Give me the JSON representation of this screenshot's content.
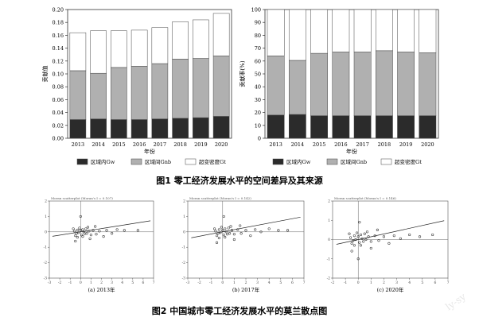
{
  "colors": {
    "within": "#2b2b2b",
    "between": "#b0b0b0",
    "transvariation": "#ffffff",
    "scatter_point": "#333333",
    "axis_line": "#444444",
    "watermark": "#c8c8c8"
  },
  "figure1": {
    "caption": "图1 零工经济发展水平的空间差异及其来源"
  },
  "figure2": {
    "caption": "图2 中国城市零工经济发展水平的莫兰散点图"
  },
  "watermark_text": "ly-sy",
  "chart_data": [
    {
      "type": "bar",
      "stacked": true,
      "categories": [
        "2013",
        "2014",
        "2015",
        "2016",
        "2017",
        "2018",
        "2019",
        "2020"
      ],
      "xlabel": "年份",
      "ylabel": "贡献值",
      "ylim": [
        0,
        0.2
      ],
      "yticks": [
        "0.00",
        "0.02",
        "0.04",
        "0.06",
        "0.08",
        "0.10",
        "0.12",
        "0.14",
        "0.16",
        "0.18",
        "0.20"
      ],
      "series": [
        {
          "name": "区域内Gw",
          "values": [
            0.029,
            0.03,
            0.029,
            0.029,
            0.03,
            0.031,
            0.032,
            0.034
          ]
        },
        {
          "name": "区域间Gnb",
          "values": [
            0.076,
            0.071,
            0.081,
            0.083,
            0.086,
            0.092,
            0.092,
            0.094
          ]
        },
        {
          "name": "超变密度Gt",
          "values": [
            0.059,
            0.066,
            0.057,
            0.056,
            0.056,
            0.058,
            0.06,
            0.066
          ]
        }
      ],
      "legend_position": "bottom"
    },
    {
      "type": "bar",
      "stacked": true,
      "categories": [
        "2013",
        "2014",
        "2015",
        "2016",
        "2017",
        "2018",
        "2019",
        "2020"
      ],
      "xlabel": "年份",
      "ylabel": "贡献率(%)",
      "ylim": [
        0,
        100
      ],
      "yticks": [
        "0",
        "10",
        "20",
        "30",
        "40",
        "50",
        "60",
        "70",
        "80",
        "90",
        "100"
      ],
      "series": [
        {
          "name": "区域内Gw",
          "values": [
            18,
            18.5,
            17.5,
            17.5,
            17.5,
            17.5,
            17.5,
            17.5
          ]
        },
        {
          "name": "区域间Gnb",
          "values": [
            46,
            42,
            48.5,
            49.5,
            49.5,
            50.5,
            49.5,
            49
          ]
        },
        {
          "name": "超变密度Gt",
          "values": [
            36,
            39.5,
            34,
            33,
            33,
            32,
            33,
            33.5
          ]
        }
      ],
      "legend_position": "bottom"
    },
    {
      "type": "scatter",
      "subcaption": "(a) 2013年",
      "header": "Moran scatterplot (Moran's I = 0.107)",
      "xlim": [
        -3,
        7
      ],
      "ylim": [
        -3,
        2
      ],
      "xticks": [
        "-3",
        "-2",
        "-1",
        "0",
        "1",
        "2",
        "3",
        "4",
        "5",
        "6",
        "7"
      ],
      "yticks": [
        "-3",
        "-2",
        "-1",
        "0",
        "1",
        "2"
      ],
      "fit_slope": 0.107,
      "points": [
        [
          -0.6,
          0.05
        ],
        [
          -0.4,
          -0.1
        ],
        [
          -0.3,
          0.12
        ],
        [
          -0.2,
          -0.05
        ],
        [
          0.0,
          0.1
        ],
        [
          0.1,
          -0.2
        ],
        [
          0.2,
          0.15
        ],
        [
          -0.5,
          -0.25
        ],
        [
          0.3,
          0.0
        ],
        [
          0.4,
          -0.12
        ],
        [
          -0.1,
          0.25
        ],
        [
          0.5,
          0.2
        ],
        [
          0.6,
          -0.1
        ],
        [
          0.8,
          0.05
        ],
        [
          1.0,
          -0.2
        ],
        [
          1.2,
          0.1
        ],
        [
          -0.7,
          0.2
        ],
        [
          -0.3,
          -0.35
        ],
        [
          0.2,
          -0.3
        ],
        [
          0.7,
          0.3
        ],
        [
          1.5,
          -0.15
        ],
        [
          1.8,
          0.05
        ],
        [
          2.2,
          -0.3
        ],
        [
          2.5,
          0.1
        ],
        [
          3.0,
          -0.1
        ],
        [
          3.5,
          0.15
        ],
        [
          4.2,
          0.1
        ],
        [
          5.5,
          0.1
        ],
        [
          0.0,
          1.0
        ],
        [
          -0.5,
          -0.6
        ],
        [
          0.9,
          -0.45
        ],
        [
          1.4,
          0.35
        ]
      ]
    },
    {
      "type": "scatter",
      "subcaption": "(b) 2017年",
      "header": "Moran scatterplot (Moran's I = 0.142)",
      "xlim": [
        -3,
        7
      ],
      "ylim": [
        -3,
        2
      ],
      "xticks": [
        "-3",
        "-2",
        "-1",
        "0",
        "1",
        "2",
        "3",
        "4",
        "5",
        "6",
        "7"
      ],
      "yticks": [
        "-3",
        "-2",
        "-1",
        "0",
        "1",
        "2"
      ],
      "fit_slope": 0.142,
      "points": [
        [
          -0.6,
          0.05
        ],
        [
          -0.4,
          -0.1
        ],
        [
          -0.3,
          0.15
        ],
        [
          -0.2,
          -0.05
        ],
        [
          0.0,
          0.1
        ],
        [
          0.1,
          -0.2
        ],
        [
          0.2,
          0.2
        ],
        [
          -0.5,
          -0.25
        ],
        [
          0.3,
          0.0
        ],
        [
          0.4,
          -0.15
        ],
        [
          -0.1,
          0.3
        ],
        [
          0.5,
          0.25
        ],
        [
          0.6,
          -0.1
        ],
        [
          0.8,
          0.1
        ],
        [
          1.0,
          -0.15
        ],
        [
          1.3,
          0.15
        ],
        [
          -0.7,
          0.2
        ],
        [
          -0.3,
          -0.4
        ],
        [
          0.2,
          -0.35
        ],
        [
          0.7,
          0.35
        ],
        [
          1.6,
          -0.1
        ],
        [
          2.0,
          0.1
        ],
        [
          2.4,
          -0.25
        ],
        [
          2.8,
          0.15
        ],
        [
          3.3,
          0.0
        ],
        [
          4.0,
          0.2
        ],
        [
          4.8,
          0.1
        ],
        [
          5.6,
          0.1
        ],
        [
          0.1,
          1.0
        ],
        [
          -0.5,
          -0.7
        ],
        [
          1.0,
          -0.5
        ],
        [
          1.5,
          0.4
        ]
      ]
    },
    {
      "type": "scatter",
      "subcaption": "(c) 2020年",
      "header": "Moran scatterplot (Moran's I = 0.146)",
      "xlim": [
        -2,
        7
      ],
      "ylim": [
        -2,
        2
      ],
      "xticks": [
        "-2",
        "-1",
        "0",
        "1",
        "2",
        "3",
        "4",
        "5",
        "6",
        "7"
      ],
      "yticks": [
        "-2",
        "-1",
        "0",
        "1",
        "2"
      ],
      "fit_slope": 0.146,
      "points": [
        [
          -0.6,
          0.1
        ],
        [
          -0.4,
          -0.05
        ],
        [
          -0.3,
          0.2
        ],
        [
          -0.2,
          0.0
        ],
        [
          0.0,
          0.15
        ],
        [
          0.1,
          -0.15
        ],
        [
          0.2,
          0.25
        ],
        [
          -0.5,
          -0.2
        ],
        [
          0.3,
          0.05
        ],
        [
          0.4,
          -0.1
        ],
        [
          -0.1,
          0.35
        ],
        [
          0.5,
          0.3
        ],
        [
          0.6,
          0.0
        ],
        [
          0.8,
          0.15
        ],
        [
          1.0,
          -0.1
        ],
        [
          1.3,
          0.2
        ],
        [
          -0.7,
          0.3
        ],
        [
          -0.3,
          -0.3
        ],
        [
          0.2,
          -0.3
        ],
        [
          0.7,
          0.4
        ],
        [
          1.6,
          -0.05
        ],
        [
          2.0,
          0.15
        ],
        [
          2.4,
          -0.2
        ],
        [
          2.8,
          0.2
        ],
        [
          3.3,
          0.05
        ],
        [
          4.0,
          0.25
        ],
        [
          4.8,
          0.15
        ],
        [
          5.8,
          0.25
        ],
        [
          0.1,
          0.9
        ],
        [
          -0.5,
          -0.6
        ],
        [
          1.0,
          -0.45
        ],
        [
          1.5,
          0.5
        ],
        [
          0.0,
          -1.0
        ]
      ]
    }
  ]
}
